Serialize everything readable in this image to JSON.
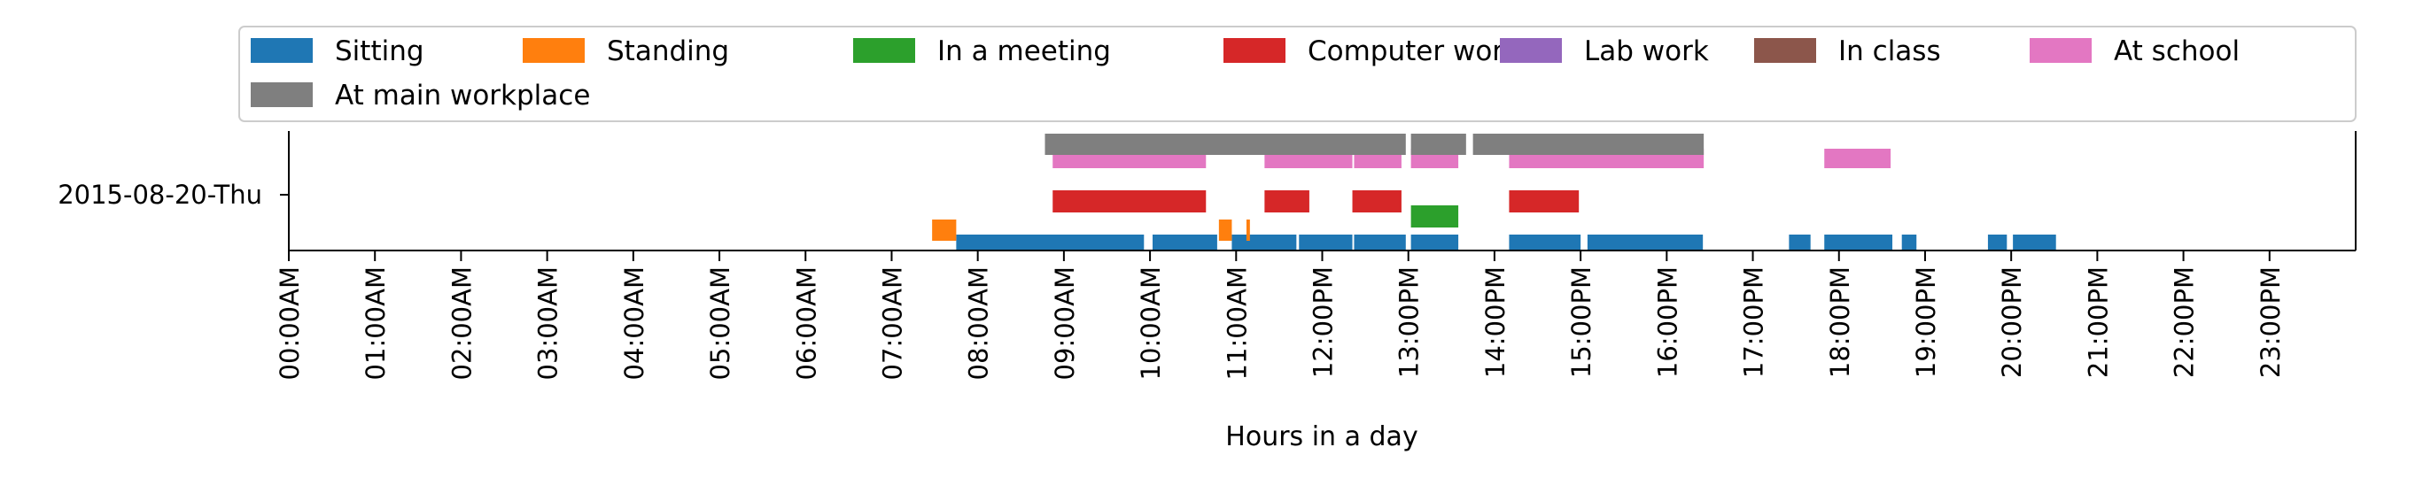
{
  "chart_data": {
    "type": "timeline",
    "xlabel": "Hours in a day",
    "ylabel": "",
    "title": "",
    "row_label": "2015-08-20-Thu",
    "xlim": [
      0,
      24
    ],
    "x_ticks": [
      "00:00AM",
      "01:00AM",
      "02:00AM",
      "03:00AM",
      "04:00AM",
      "05:00AM",
      "06:00AM",
      "07:00AM",
      "08:00AM",
      "09:00AM",
      "10:00AM",
      "11:00AM",
      "12:00PM",
      "13:00PM",
      "14:00PM",
      "15:00PM",
      "16:00PM",
      "17:00PM",
      "18:00PM",
      "19:00PM",
      "20:00PM",
      "21:00PM",
      "22:00PM",
      "23:00PM"
    ],
    "legend_position": "top",
    "series": [
      {
        "name": "Sitting",
        "color": "#1f77b4",
        "intervals": [
          [
            7.75,
            9.93
          ],
          [
            10.03,
            10.78
          ],
          [
            10.95,
            11.7
          ],
          [
            11.73,
            12.35
          ],
          [
            12.37,
            12.97
          ],
          [
            13.03,
            13.58
          ],
          [
            14.17,
            15.0
          ],
          [
            15.08,
            16.42
          ],
          [
            17.42,
            17.67
          ],
          [
            17.83,
            18.62
          ],
          [
            18.73,
            18.9
          ],
          [
            19.73,
            19.95
          ],
          [
            20.02,
            20.52
          ]
        ]
      },
      {
        "name": "Standing",
        "color": "#ff7f0e",
        "intervals": [
          [
            7.47,
            7.75
          ],
          [
            10.8,
            10.95
          ],
          [
            11.12,
            11.16
          ]
        ]
      },
      {
        "name": "In a meeting",
        "color": "#2ca02c",
        "intervals": [
          [
            13.03,
            13.58
          ]
        ]
      },
      {
        "name": "Computer work",
        "color": "#d62728",
        "intervals": [
          [
            8.87,
            10.65
          ],
          [
            11.33,
            11.85
          ],
          [
            12.35,
            12.92
          ],
          [
            14.17,
            14.98
          ]
        ]
      },
      {
        "name": "Lab work",
        "color": "#9467bd",
        "intervals": []
      },
      {
        "name": "In class",
        "color": "#8c564b",
        "intervals": []
      },
      {
        "name": "At school",
        "color": "#e377c2",
        "intervals": [
          [
            8.87,
            10.65
          ],
          [
            11.33,
            12.35
          ],
          [
            12.37,
            12.92
          ],
          [
            13.03,
            13.58
          ],
          [
            14.17,
            16.43
          ],
          [
            17.83,
            18.6
          ]
        ]
      },
      {
        "name": "At main workplace",
        "color": "#7f7f7f",
        "intervals": [
          [
            8.78,
            12.97
          ],
          [
            13.03,
            13.67
          ],
          [
            13.75,
            16.43
          ]
        ]
      }
    ]
  }
}
